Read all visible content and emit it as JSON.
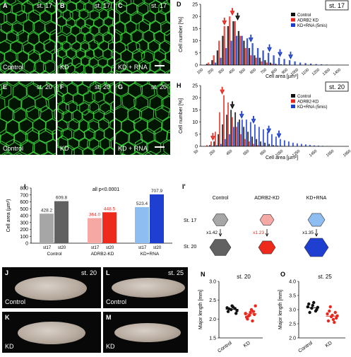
{
  "labels": {
    "A": "A",
    "B": "B",
    "C": "C",
    "D": "D",
    "E": "E",
    "F": "F",
    "G": "G",
    "H": "H",
    "I": "I",
    "I2": "I'",
    "J": "J",
    "K": "K",
    "L": "L",
    "M": "M",
    "N": "N",
    "O": "O"
  },
  "micro": {
    "A": {
      "stage": "st. 17",
      "cond": "Control"
    },
    "B": {
      "stage": "st. 17",
      "cond": "KD"
    },
    "C": {
      "stage": "st. 17",
      "cond": "KD + RNA"
    },
    "E": {
      "stage": "st. 20",
      "cond": "Control"
    },
    "F": {
      "stage": "st. 20",
      "cond": "KD"
    },
    "G": {
      "stage": "st. 20",
      "cond": "KD + RNA"
    }
  },
  "embryos": {
    "J": {
      "stage": "st. 20",
      "cond": "Control"
    },
    "K": {
      "cond": "KD"
    },
    "L": {
      "stage": "st. 25",
      "cond": "Control"
    },
    "M": {
      "cond": "KD"
    }
  },
  "colors": {
    "control": "#111111",
    "kd": "#e8281e",
    "rna": "#1c3fc8",
    "c_light": "#a6a6a6",
    "c_dark": "#616161",
    "k_light": "#f6a9a4",
    "k_dark": "#ee2a1c",
    "r_light": "#8ebdf2",
    "r_dark": "#1f3fd0"
  },
  "chart_data": [
    {
      "id": "D",
      "type": "bar",
      "stage_label": "st. 17",
      "xlabel": "Cell area [µm²]",
      "ylabel": "Cell number [%]",
      "ylim": [
        0,
        25
      ],
      "yticks": [
        0,
        5,
        10,
        15,
        20,
        25
      ],
      "x": [
        100,
        150,
        200,
        250,
        300,
        350,
        400,
        450,
        500,
        550,
        600,
        650,
        700,
        750,
        800,
        850,
        900,
        950,
        1000,
        1050,
        1100,
        1150,
        1200,
        1250,
        1300,
        1350,
        1400,
        1450
      ],
      "xtick_labels": [
        "100",
        "200",
        "300",
        "400",
        "500",
        "600",
        "700",
        "800",
        "900",
        "1000",
        "1100",
        "1200",
        "1300",
        "1400"
      ],
      "series": [
        {
          "name": "Control",
          "values": [
            0,
            0.5,
            2,
            6,
            12,
            16,
            18,
            14,
            10,
            7,
            4,
            3,
            2,
            1,
            0.5,
            0.3,
            0.2,
            0,
            0,
            0,
            0,
            0,
            0,
            0,
            0,
            0,
            0,
            0
          ]
        },
        {
          "name": "ADRB2 KD",
          "values": [
            0,
            1,
            4,
            10,
            16,
            20,
            18,
            12,
            7,
            4,
            3,
            1.5,
            1,
            0.5,
            0.2,
            0,
            0,
            0,
            0,
            0,
            0,
            0,
            0,
            0,
            0,
            0,
            0,
            0
          ]
        },
        {
          "name": "KD+RNA (5mis)",
          "values": [
            0,
            0.3,
            1,
            3,
            7,
            10,
            12,
            12,
            11,
            9,
            7,
            6,
            5,
            4,
            3,
            2.5,
            2,
            1.5,
            1,
            0.8,
            0.6,
            0.4,
            0.3,
            0.2,
            0.1,
            0.1,
            0,
            0
          ]
        }
      ],
      "arrows": [
        {
          "series": "ADRB2 KD",
          "x": 300
        },
        {
          "series": "ADRB2 KD",
          "x": 375
        },
        {
          "series": "Control",
          "x": 425
        },
        {
          "series": "KD+RNA (5mis)",
          "x": 550
        },
        {
          "series": "KD+RNA (5mis)",
          "x": 725
        },
        {
          "series": "KD+RNA (5mis)",
          "x": 825
        },
        {
          "series": "KD+RNA (5mis)",
          "x": 925
        }
      ]
    },
    {
      "id": "H",
      "type": "bar",
      "stage_label": "st. 20",
      "xlabel": "Cell area [µm²]",
      "ylabel": "Cell number [%]",
      "ylim": [
        0,
        25
      ],
      "yticks": [
        0,
        5,
        10,
        15,
        20,
        25
      ],
      "x": [
        100,
        150,
        200,
        250,
        300,
        350,
        400,
        450,
        500,
        550,
        600,
        650,
        700,
        750,
        800,
        850,
        900,
        950,
        1000,
        1050,
        1100,
        1150,
        1200,
        1250,
        1300,
        1350,
        1400,
        1450,
        1500,
        1550,
        1600,
        1650,
        1700,
        1750,
        1800
      ],
      "xtick_labels": [
        "50",
        "250",
        "450",
        "650",
        "850",
        "1050",
        "1250",
        "1450",
        "1650",
        "1850"
      ],
      "series": [
        {
          "name": "Control",
          "values": [
            0,
            0,
            0.5,
            2,
            5,
            9,
            13,
            15,
            14,
            11,
            8,
            6,
            4,
            3,
            2,
            1.5,
            1,
            0.5,
            0.3,
            0.2,
            0,
            0,
            0,
            0,
            0,
            0,
            0,
            0,
            0,
            0,
            0,
            0,
            0,
            0,
            0
          ]
        },
        {
          "name": "ADRB2-KD",
          "values": [
            0,
            0.5,
            2,
            6,
            14,
            21,
            18,
            12,
            8,
            5,
            3,
            2,
            1,
            0.5,
            0.3,
            0,
            0,
            0,
            0,
            0,
            0,
            0,
            0,
            0,
            0,
            0,
            0,
            0,
            0,
            0,
            0,
            0,
            0,
            0,
            0
          ]
        },
        {
          "name": "KD+RNA (5mis)",
          "values": [
            0,
            0,
            0.2,
            0.5,
            1,
            3,
            5,
            8,
            10,
            11,
            11,
            10,
            9,
            8,
            7,
            6,
            5,
            4,
            3,
            2.5,
            2,
            1.5,
            1.2,
            1,
            0.8,
            0.6,
            0.4,
            0.3,
            0.2,
            0.1,
            0.1,
            0,
            0,
            0,
            0
          ]
        }
      ],
      "arrows": [
        {
          "series": "ADRB2-KD",
          "x": 220
        },
        {
          "series": "ADRB2-KD",
          "x": 330
        },
        {
          "series": "Control",
          "x": 450
        },
        {
          "series": "KD+RNA (5mis)",
          "x": 560
        },
        {
          "series": "KD+RNA (5mis)",
          "x": 700
        },
        {
          "series": "KD+RNA (5mis)",
          "x": 880
        },
        {
          "series": "KD+RNA (5mis)",
          "x": 1000
        }
      ]
    },
    {
      "id": "I",
      "type": "bar",
      "title": "all p<0.0001",
      "ylabel": "Cell area (µm²)",
      "ylim": [
        0,
        800
      ],
      "yticks": [
        0,
        100,
        200,
        300,
        400,
        500,
        600,
        700,
        800
      ],
      "categories": [
        "st17",
        "st20",
        "st17",
        "st20",
        "st17",
        "st20"
      ],
      "groups": [
        "Control",
        "ADRB2-KD",
        "KD+RNA"
      ],
      "values": [
        428.2,
        609.8,
        364.0,
        448.5,
        523.4,
        707.9
      ],
      "value_labels": [
        "428.2",
        "609.8",
        "364.0",
        "448.5",
        "523.4",
        "707.9"
      ]
    },
    {
      "id": "N",
      "type": "scatter",
      "title": "st. 20",
      "ylabel": "Major length [mm]",
      "ylim": [
        1.5,
        3.0
      ],
      "yticks": [
        1.5,
        2.0,
        2.5,
        3.0
      ],
      "categories": [
        "Control",
        "KD"
      ],
      "series": [
        {
          "name": "Control",
          "values": [
            2.3,
            2.25,
            2.28,
            2.2,
            2.35,
            2.15,
            2.27,
            2.32,
            2.22
          ]
        },
        {
          "name": "KD",
          "values": [
            2.15,
            2.1,
            2.2,
            2.05,
            2.18,
            2.12,
            2.0,
            2.25,
            2.35,
            2.08,
            1.95,
            2.14
          ]
        }
      ],
      "means": [
        2.26,
        2.14
      ]
    },
    {
      "id": "O",
      "type": "scatter",
      "title": "st. 25",
      "ylabel": "Major length [mm]",
      "ylim": [
        2.0,
        4.0
      ],
      "yticks": [
        2.0,
        2.5,
        3.0,
        3.5,
        4.0
      ],
      "categories": [
        "Control",
        "KD"
      ],
      "series": [
        {
          "name": "Control",
          "values": [
            3.1,
            3.05,
            2.95,
            3.2,
            3.15,
            3.0,
            2.9,
            3.25,
            3.08
          ]
        },
        {
          "name": "KD",
          "values": [
            2.85,
            2.75,
            2.9,
            2.6,
            2.8,
            2.7,
            2.95,
            2.65,
            2.78,
            3.1,
            2.55
          ]
        }
      ],
      "means": [
        3.07,
        2.77
      ]
    }
  ],
  "schematic": {
    "columns": [
      "Control",
      "ADRB2-KD",
      "KD+RNA"
    ],
    "rows": [
      "St. 17",
      "St. 20"
    ],
    "factors": [
      "x1.42",
      "x1.23",
      "x1.35"
    ]
  }
}
